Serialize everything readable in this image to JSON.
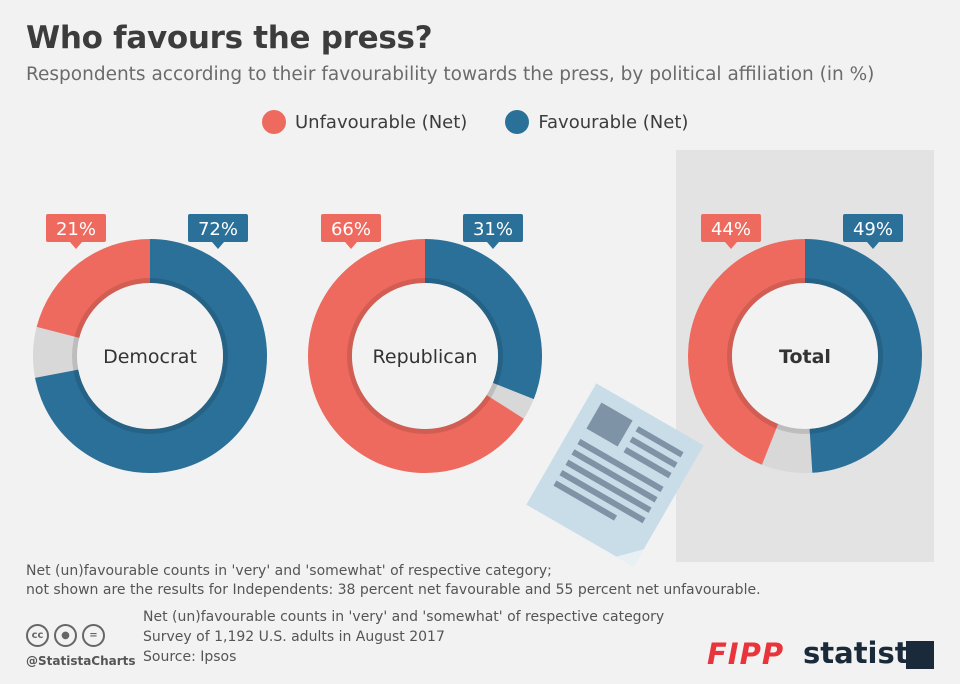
{
  "title": "Who favours the press?",
  "subtitle": "Respondents according to their favourability towards the press, by political affiliation (in %)",
  "colors": {
    "unfavourable": "#ef6a5e",
    "favourable": "#2b7099",
    "other": "#d8d8d8",
    "hole": "#f2f2f2"
  },
  "chart_data": {
    "type": "pie",
    "legend": [
      "Unfavourable (Net)",
      "Favourable (Net)"
    ],
    "legend_position": "top",
    "groups": [
      {
        "label": "Democrat",
        "unfavourable": 21,
        "favourable": 72,
        "unfavourable_label": "21%",
        "favourable_label": "72%"
      },
      {
        "label": "Republican",
        "unfavourable": 66,
        "favourable": 31,
        "unfavourable_label": "66%",
        "favourable_label": "31%"
      },
      {
        "label": "Total",
        "unfavourable": 44,
        "favourable": 49,
        "unfavourable_label": "44%",
        "favourable_label": "49%",
        "highlighted": true
      }
    ]
  },
  "note_line1": "Net (un)favourable counts in 'very' and 'somewhat' of respective category;",
  "note_line2": "not shown are the results for Independents: 38 percent net favourable and 55 percent net unfavourable.",
  "footer": {
    "line1": "Net (un)favourable counts in 'very' and 'somewhat' of respective category",
    "line2": "Survey of 1,192 U.S. adults in August 2017",
    "source": "Source: Ipsos",
    "handle": "@StatistaCharts",
    "fipp": "FIPP",
    "statista": "statista",
    "license_icons": [
      "cc-icon",
      "by-person-icon",
      "nd-equals-icon"
    ]
  }
}
